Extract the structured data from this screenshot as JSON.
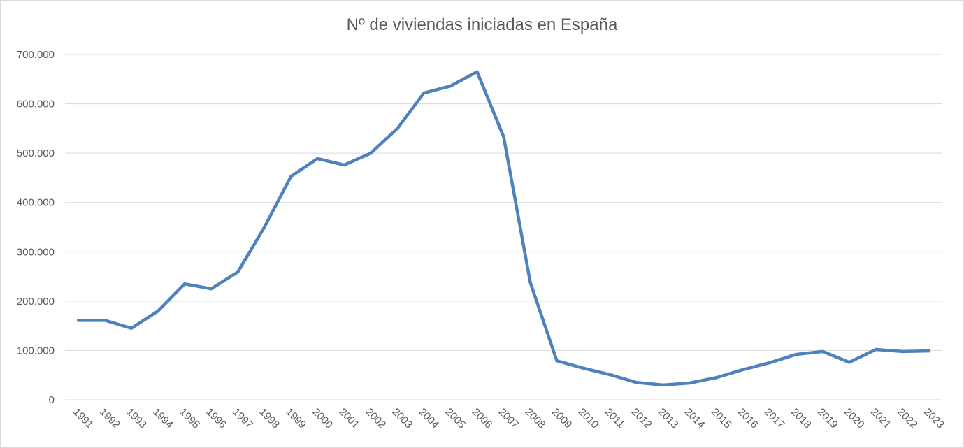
{
  "chart_data": {
    "type": "line",
    "title": "Nº de viviendas iniciadas en España",
    "xlabel": "",
    "ylabel": "",
    "ylim": [
      0,
      700000
    ],
    "grid": true,
    "yticks": [
      0,
      100000,
      200000,
      300000,
      400000,
      500000,
      600000,
      700000
    ],
    "ytick_labels": [
      "0",
      "100.000",
      "200.000",
      "300.000",
      "400.000",
      "500.000",
      "600.000",
      "700.000"
    ],
    "categories": [
      "1991",
      "1992",
      "1993",
      "1994",
      "1995",
      "1996",
      "1997",
      "1998",
      "1999",
      "2000",
      "2001",
      "2002",
      "2003",
      "2004",
      "2005",
      "2006",
      "2007",
      "2008",
      "2009",
      "2010",
      "2011",
      "2012",
      "2013",
      "2014",
      "2015",
      "2016",
      "2017",
      "2018",
      "2019",
      "2020",
      "2021",
      "2022",
      "2023"
    ],
    "series": [
      {
        "name": "Viviendas iniciadas",
        "color": "#4f81bd",
        "values": [
          161000,
          161000,
          145000,
          180000,
          235000,
          225000,
          259000,
          350000,
          453000,
          489000,
          476000,
          500000,
          550000,
          622000,
          636000,
          665000,
          533000,
          238000,
          79000,
          64000,
          51000,
          35000,
          30000,
          34000,
          45000,
          61000,
          75000,
          92000,
          98000,
          76000,
          102000,
          98000,
          99000
        ]
      }
    ]
  }
}
